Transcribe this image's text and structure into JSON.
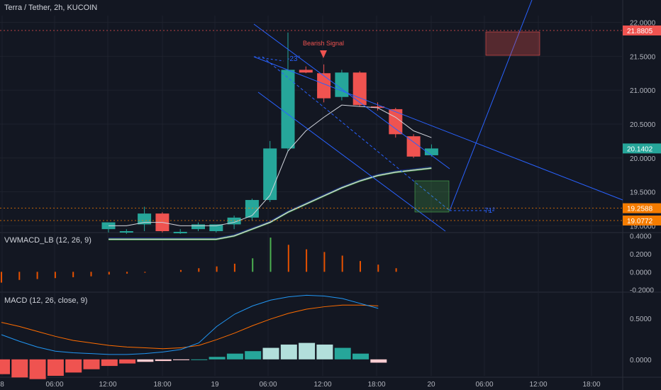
{
  "chart_title": "Terra / Tether, 2h, KUCOIN",
  "signal_label": "Bearish Signal",
  "angle_labels": [
    "-23°",
    "71°"
  ],
  "colors": {
    "bg": "#131722",
    "up": "#26a69a",
    "down": "#ef5350",
    "line": "#2962ff",
    "grid": "#1e222d"
  },
  "chart_data": [
    {
      "type": "candlestick",
      "title": "Terra / Tether, 2h, KUCOIN",
      "x_ticks": [
        "8",
        "06:00",
        "12:00",
        "18:00",
        "19",
        "06:00",
        "12:00",
        "18:00",
        "20",
        "06:00",
        "12:00",
        "18:00"
      ],
      "y_ticks": [
        "22.0000",
        "21.5000",
        "21.0000",
        "20.5000",
        "20.0000",
        "19.5000",
        "19.0000"
      ],
      "ylim": [
        18.92,
        22.1
      ],
      "candles": [
        {
          "o": 18.95,
          "h": 19.02,
          "l": 18.9,
          "c": 19.05
        },
        {
          "o": 18.9,
          "h": 18.95,
          "l": 18.88,
          "c": 18.92
        },
        {
          "o": 19.02,
          "h": 19.28,
          "l": 18.92,
          "c": 19.18
        },
        {
          "o": 19.18,
          "h": 19.2,
          "l": 18.9,
          "c": 18.92
        },
        {
          "o": 18.9,
          "h": 18.95,
          "l": 18.88,
          "c": 18.91
        },
        {
          "o": 18.95,
          "h": 19.05,
          "l": 18.92,
          "c": 19.02
        },
        {
          "o": 18.92,
          "h": 19.0,
          "l": 18.9,
          "c": 19.02
        },
        {
          "o": 19.02,
          "h": 19.15,
          "l": 18.95,
          "c": 19.12
        },
        {
          "o": 19.12,
          "h": 19.4,
          "l": 19.08,
          "c": 19.38
        },
        {
          "o": 19.38,
          "h": 20.25,
          "l": 19.35,
          "c": 20.14
        },
        {
          "o": 20.14,
          "h": 21.85,
          "l": 20.1,
          "c": 21.3
        },
        {
          "o": 21.3,
          "h": 21.35,
          "l": 21.25,
          "c": 21.26
        },
        {
          "o": 21.25,
          "h": 21.38,
          "l": 20.82,
          "c": 20.88
        },
        {
          "o": 20.9,
          "h": 21.3,
          "l": 20.85,
          "c": 21.26
        },
        {
          "o": 21.26,
          "h": 21.28,
          "l": 20.76,
          "c": 20.78
        },
        {
          "o": 20.76,
          "h": 20.82,
          "l": 20.7,
          "c": 20.75
        },
        {
          "o": 20.72,
          "h": 20.74,
          "l": 20.3,
          "c": 20.35
        },
        {
          "o": 20.32,
          "h": 20.35,
          "l": 20.0,
          "c": 20.02
        },
        {
          "o": 20.04,
          "h": 20.2,
          "l": 20.02,
          "c": 20.14
        }
      ],
      "ma_fast": [
        19.0,
        19.0,
        19.05,
        19.05,
        19.0,
        19.0,
        19.0,
        19.05,
        19.15,
        19.45,
        20.1,
        20.4,
        20.6,
        20.78,
        20.76,
        20.74,
        20.6,
        20.4,
        20.3
      ],
      "ma_slow": [
        18.8,
        18.8,
        18.8,
        18.8,
        18.8,
        18.8,
        18.8,
        18.85,
        18.95,
        19.05,
        19.2,
        19.32,
        19.44,
        19.56,
        19.66,
        19.74,
        19.79,
        19.82,
        19.85
      ],
      "price_labels": [
        "21.8805",
        "20.1402",
        "19.2588",
        "19.0772"
      ]
    },
    {
      "type": "bar",
      "title": "VWMACD_LB (12, 26, 9)",
      "y_ticks": [
        "0.4000",
        "0.2000",
        "0.0000",
        "-0.2000"
      ],
      "ylim": [
        -0.21,
        0.42
      ],
      "values": [
        -0.12,
        -0.09,
        -0.08,
        -0.07,
        -0.06,
        -0.05,
        -0.03,
        -0.02,
        -0.01,
        0.0,
        0.02,
        0.04,
        0.06,
        0.09,
        0.15,
        0.38,
        0.3,
        0.25,
        0.22,
        0.18,
        0.12,
        0.08,
        0.04
      ]
    },
    {
      "type": "line",
      "title": "MACD (12, 26, close, 9)",
      "y_ticks": [
        "0.5000",
        "0.0000"
      ],
      "ylim": [
        -0.2,
        0.8
      ],
      "macd": [
        0.3,
        0.22,
        0.15,
        0.1,
        0.08,
        0.07,
        0.06,
        0.06,
        0.07,
        0.09,
        0.12,
        0.2,
        0.4,
        0.55,
        0.65,
        0.72,
        0.76,
        0.78,
        0.77,
        0.74,
        0.68,
        0.62
      ],
      "signal": [
        0.45,
        0.4,
        0.34,
        0.28,
        0.23,
        0.2,
        0.17,
        0.15,
        0.14,
        0.13,
        0.14,
        0.17,
        0.24,
        0.32,
        0.41,
        0.49,
        0.56,
        0.61,
        0.64,
        0.66,
        0.66,
        0.65
      ],
      "histogram": [
        -0.18,
        -0.22,
        -0.24,
        -0.2,
        -0.16,
        -0.12,
        -0.08,
        -0.05,
        -0.03,
        -0.02,
        -0.01,
        0.0,
        0.03,
        0.07,
        0.1,
        0.14,
        0.18,
        0.2,
        0.18,
        0.14,
        0.07,
        -0.04
      ]
    }
  ]
}
